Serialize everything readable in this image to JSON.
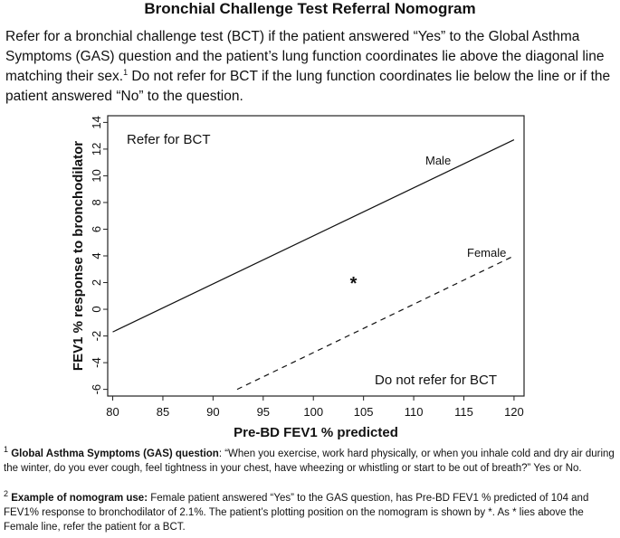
{
  "title": "Bronchial Challenge Test Referral Nomogram",
  "intro": {
    "part1": "Refer for a bronchial challenge test (BCT) if the patient answered “Yes” to the Global Asthma Symptoms (GAS) question and the patient’s lung function coordinates lie above the diagonal line matching their sex.",
    "sup": "1",
    "part2": " Do not refer for BCT if the lung function coordinates lie below the line or if the patient answered “No” to the question."
  },
  "chart_data": {
    "type": "line",
    "xlabel": "Pre-BD FEV1 % predicted",
    "ylabel": "FEV1 % response to bronchodilator",
    "xlim": [
      79.5,
      121
    ],
    "ylim": [
      -6.5,
      14.5
    ],
    "xticks": [
      80,
      85,
      90,
      95,
      100,
      105,
      110,
      115,
      120
    ],
    "yticks": [
      -6,
      -4,
      -2,
      0,
      2,
      4,
      6,
      8,
      10,
      12,
      14
    ],
    "grid": false,
    "series": [
      {
        "name": "Male",
        "style": "solid",
        "x": [
          80,
          120
        ],
        "y": [
          -1.7,
          12.7
        ]
      },
      {
        "name": "Female",
        "style": "dashed",
        "x": [
          92.4,
          120
        ],
        "y": [
          -6.0,
          4.0
        ]
      }
    ],
    "points": [
      {
        "label": "*",
        "x": 104,
        "y": 2.1
      }
    ],
    "annotations": [
      "Refer for BCT",
      "Do not refer for BCT"
    ]
  },
  "footnotes": [
    {
      "num": "1",
      "bold": "Global Asthma Symptoms (GAS) question",
      "text": ": “When you exercise, work hard physically, or when you inhale cold and dry air during the winter, do you ever cough, feel tightness in your chest, have wheezing or whistling or start to be out of breath?” Yes or No."
    },
    {
      "num": "2",
      "bold": "Example of nomogram use:",
      "text": " Female patient answered “Yes” to the GAS question, has Pre-BD FEV1 % predicted of 104 and FEV1% response to bronchodilator of 2.1%. The patient’s plotting position on the nomogram is shown by *. As * lies above the Female line, refer the patient for a BCT."
    }
  ]
}
